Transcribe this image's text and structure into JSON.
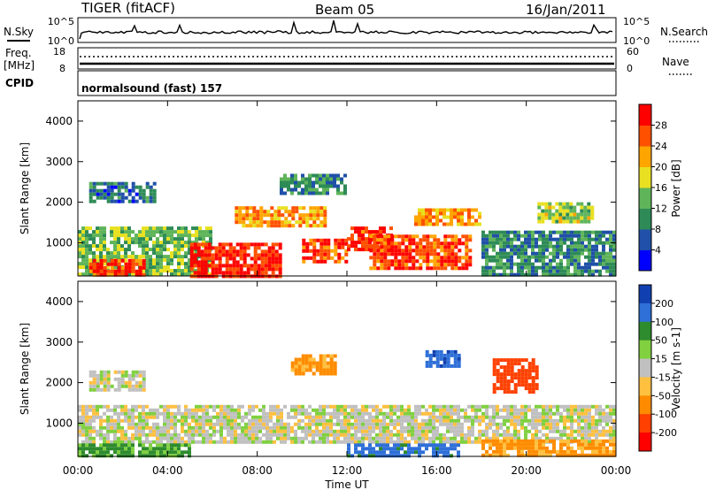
{
  "header": {
    "radar": "TIGER (fitACF)",
    "beam": "Beam 05",
    "date": "16/Jan/2011"
  },
  "status_panels": {
    "nsky_label": "N.Sky",
    "nsky_ticks": [
      "10^5",
      "10^0"
    ],
    "nsearch_label": "N.Search",
    "nsearch_ticks": [
      "10^5",
      "10^0"
    ],
    "freq_label": "Freq.",
    "freq_unit": "[MHz]",
    "freq_ticks": [
      "18",
      "8"
    ],
    "nave_label": "Nave",
    "nave_ticks": [
      "60",
      "0"
    ],
    "cpid_label": "CPID",
    "cpid_text": "normalsound (fast) 157"
  },
  "colors": {
    "power_scale": [
      "#0000ff",
      "#2050a8",
      "#2e8b57",
      "#5fb45a",
      "#e8e020",
      "#ffa500",
      "#ff5000",
      "#ff0000"
    ],
    "velocity_scale": [
      "#1040b0",
      "#2e6fd8",
      "#2e8b2e",
      "#80d040",
      "#c0c0c0",
      "#ffc040",
      "#ff8c00",
      "#ff4000",
      "#ff0000"
    ],
    "ground_scatter": "#c0c0c0"
  },
  "chart_data": [
    {
      "type": "heatmap",
      "title": "Power",
      "xlabel": "Time UT",
      "ylabel": "Slant Range [km]",
      "x_tick_labels": [
        "00:00",
        "04:00",
        "08:00",
        "12:00",
        "16:00",
        "20:00",
        "00:00"
      ],
      "xlim": [
        "00:00",
        "24:00"
      ],
      "y_tick_labels": [
        "1000",
        "2000",
        "3000",
        "4000"
      ],
      "ylim": [
        180,
        4500
      ],
      "colorbar": {
        "label": "Power [dB]",
        "ticks": [
          "4",
          "8",
          "12",
          "16",
          "20",
          "24",
          "28"
        ],
        "range": [
          0,
          32
        ]
      },
      "regions": [
        {
          "t_start": 0.0,
          "t_end": 6.0,
          "range_min": 180,
          "range_max": 1400,
          "mean_value": 14
        },
        {
          "t_start": 0.5,
          "t_end": 3.0,
          "range_min": 250,
          "range_max": 600,
          "mean_value": 28
        },
        {
          "t_start": 5.0,
          "t_end": 9.0,
          "range_min": 200,
          "range_max": 1000,
          "mean_value": 29
        },
        {
          "t_start": 7.0,
          "t_end": 11.0,
          "range_min": 1450,
          "range_max": 1900,
          "mean_value": 22
        },
        {
          "t_start": 10.0,
          "t_end": 12.0,
          "range_min": 550,
          "range_max": 1100,
          "mean_value": 27
        },
        {
          "t_start": 12.0,
          "t_end": 14.0,
          "range_min": 800,
          "range_max": 1400,
          "mean_value": 28
        },
        {
          "t_start": 13.0,
          "t_end": 17.5,
          "range_min": 350,
          "range_max": 1200,
          "mean_value": 27
        },
        {
          "t_start": 15.0,
          "t_end": 18.0,
          "range_min": 1500,
          "range_max": 1850,
          "mean_value": 23
        },
        {
          "t_start": 9.0,
          "t_end": 12.0,
          "range_min": 2200,
          "range_max": 2700,
          "mean_value": 10
        },
        {
          "t_start": 0.5,
          "t_end": 3.5,
          "range_min": 2000,
          "range_max": 2500,
          "mean_value": 8
        },
        {
          "t_start": 18.0,
          "t_end": 24.0,
          "range_min": 180,
          "range_max": 1300,
          "mean_value": 10
        },
        {
          "t_start": 20.5,
          "t_end": 23.0,
          "range_min": 1500,
          "range_max": 2000,
          "mean_value": 16
        }
      ]
    },
    {
      "type": "heatmap",
      "title": "Velocity",
      "xlabel": "Time UT",
      "ylabel": "Slant Range [km]",
      "x_tick_labels": [
        "00:00",
        "04:00",
        "08:00",
        "12:00",
        "16:00",
        "20:00",
        "00:00"
      ],
      "xlim": [
        "00:00",
        "24:00"
      ],
      "y_tick_labels": [
        "1000",
        "2000",
        "3000",
        "4000"
      ],
      "ylim": [
        180,
        4500
      ],
      "colorbar": {
        "label": "Velocity [m s-1]",
        "ticks": [
          "200",
          "100",
          "50",
          "15",
          "-15",
          "-50",
          "-100",
          "-200"
        ],
        "range": [
          -250,
          250
        ]
      },
      "regions": [
        {
          "t_start": 0.0,
          "t_end": 24.0,
          "range_min": 500,
          "range_max": 1450,
          "mean_value": 0
        },
        {
          "t_start": 0.0,
          "t_end": 5.0,
          "range_min": 200,
          "range_max": 500,
          "mean_value": 60
        },
        {
          "t_start": 12.0,
          "t_end": 17.0,
          "range_min": 200,
          "range_max": 500,
          "mean_value": 120
        },
        {
          "t_start": 9.5,
          "t_end": 11.5,
          "range_min": 2200,
          "range_max": 2700,
          "mean_value": -60
        },
        {
          "t_start": 15.5,
          "t_end": 17.0,
          "range_min": 2400,
          "range_max": 2800,
          "mean_value": 180
        },
        {
          "t_start": 18.5,
          "t_end": 20.5,
          "range_min": 1800,
          "range_max": 2600,
          "mean_value": -150
        },
        {
          "t_start": 18.0,
          "t_end": 24.0,
          "range_min": 200,
          "range_max": 600,
          "mean_value": -60
        },
        {
          "t_start": 0.5,
          "t_end": 3.0,
          "range_min": 1800,
          "range_max": 2300,
          "mean_value": 0
        }
      ]
    }
  ]
}
